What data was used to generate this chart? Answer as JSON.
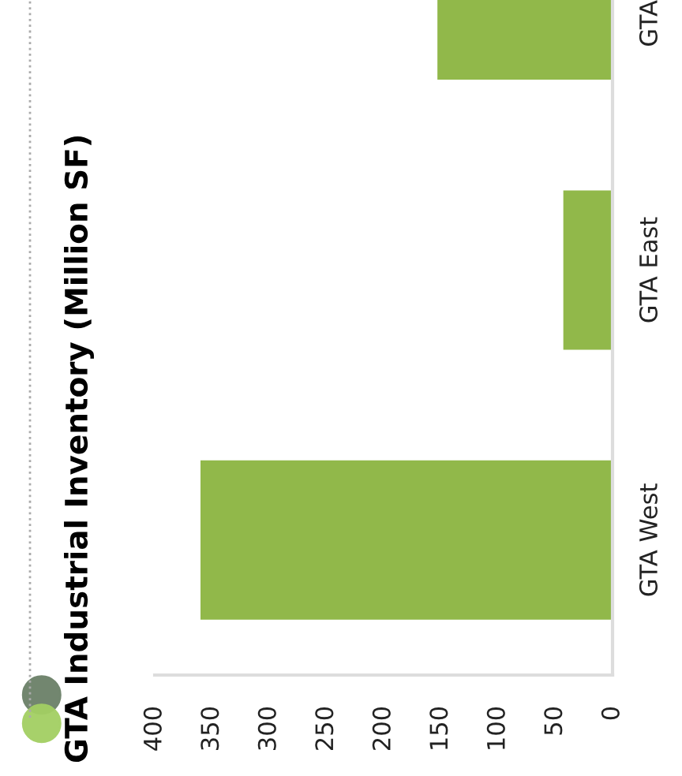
{
  "chart_data": {
    "type": "bar",
    "title": "GTA Industrial Inventory (Million SF)",
    "orientation": "horizontal",
    "categories": [
      "GTA",
      "GTA East",
      "GTA West"
    ],
    "values": [
      153,
      43,
      360
    ],
    "color": "#91b84a",
    "xlim": [
      400,
      0
    ],
    "xticks": [
      0,
      50,
      100,
      150,
      200,
      250,
      300,
      350,
      400
    ],
    "grid": false
  }
}
